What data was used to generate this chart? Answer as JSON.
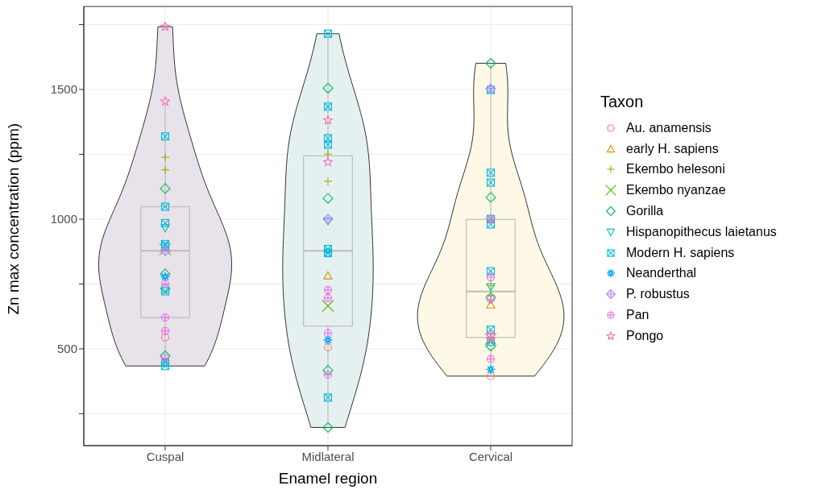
{
  "chart_data": {
    "type": "box",
    "xlabel": "Enamel region",
    "ylabel": "Zn max concentration (ppm)",
    "legend_title": "Taxon",
    "categories": [
      "Cuspal",
      "Midlateral",
      "Cervical"
    ],
    "colors": [
      "#e8e2ea",
      "#e5f1f1",
      "#fdf9e6"
    ],
    "boxes": [
      {
        "low": 434,
        "q1": 621,
        "median": 878,
        "q3": 1048,
        "high": 1454
      },
      {
        "low": 197,
        "q1": 588,
        "median": 878,
        "q3": 1244,
        "high": 1715
      },
      {
        "low": 395,
        "q1": 544,
        "median": 721,
        "q3": 999,
        "high": 1601
      }
    ],
    "ylim": [
      127,
      1820
    ],
    "yticks": [
      {
        "value": 250,
        "label": null
      },
      500,
      {
        "value": 750,
        "label": null
      },
      1000,
      {
        "value": 1250,
        "label": null
      },
      1500,
      {
        "value": 1750,
        "label": null
      }
    ],
    "grid": true,
    "legend": "right",
    "series": [
      {
        "name": "Au. anamensis",
        "type": "scatter",
        "marker": "circle",
        "color": "#f8766d",
        "x": [
          "Cuspal",
          "Midlateral",
          "Cervical"
        ],
        "values": [
          544,
          506,
          395
        ]
      },
      {
        "name": "early H. sapiens",
        "type": "scatter",
        "marker": "triangle",
        "color": "#db8e00",
        "x": [
          "Midlateral",
          "Cervical"
        ],
        "values": [
          782,
          670
        ]
      },
      {
        "name": "Ekembo helesoni",
        "type": "scatter",
        "marker": "cross",
        "color": "#aea200",
        "x": [
          "Cuspal",
          "Cuspal",
          "Midlateral",
          "Midlateral",
          "Cervical",
          "Cervical"
        ],
        "values": [
          1239,
          1190,
          1251,
          1146,
          744,
          706
        ]
      },
      {
        "name": "Ekembo nyanzae",
        "type": "scatter",
        "marker": "cross",
        "color": "#64b200",
        "x": [
          "Cuspal",
          "Midlateral",
          "Cervical"
        ],
        "values": [
          884,
          666,
          538
        ]
      },
      {
        "name": "Gorilla",
        "type": "scatter",
        "marker": "diamond",
        "color": "#00bd5c",
        "x": [
          "Cuspal",
          "Cuspal",
          "Cuspal",
          "Cuspal",
          "Midlateral",
          "Midlateral",
          "Midlateral",
          "Midlateral",
          "Cervical",
          "Cervical",
          "Cervical",
          "Cervical"
        ],
        "values": [
          1118,
          789,
          733,
          473,
          1505,
          1080,
          417,
          197,
          1601,
          1084,
          698,
          511
        ]
      },
      {
        "name": "Hispanopithecus laietanus",
        "type": "scatter",
        "marker": "triangle",
        "color": "#00c1a7",
        "x": [
          "Cuspal",
          "Midlateral",
          "Cervical"
        ],
        "values": [
          966,
          993,
          739
        ]
      },
      {
        "name": "Modern H. sapiens",
        "type": "scatter",
        "marker": "square",
        "color": "#00bade",
        "x": [
          "Cuspal",
          "Cuspal",
          "Cuspal",
          "Cuspal",
          "Cuspal",
          "Cuspal",
          "Cuspal",
          "Cuspal",
          "Midlateral",
          "Midlateral",
          "Midlateral",
          "Midlateral",
          "Midlateral",
          "Midlateral",
          "Midlateral",
          "Midlateral",
          "Cervical",
          "Cervical",
          "Cervical",
          "Cervical",
          "Cervical",
          "Cervical",
          "Cervical",
          "Cervical"
        ],
        "values": [
          1319,
          1048,
          985,
          896,
          904,
          722,
          449,
          434,
          1715,
          1434,
          1312,
          1287,
          885,
          869,
          871,
          312,
          1498,
          1179,
          1141,
          1001,
          980,
          799,
          574,
          527
        ]
      },
      {
        "name": "Neanderthal",
        "type": "scatter",
        "marker": "star",
        "color": "#00a6ff",
        "x": [
          "Cuspal",
          "Midlateral",
          "Cervical"
        ],
        "values": [
          778,
          534,
          421
        ]
      },
      {
        "name": "P. robustus",
        "type": "scatter",
        "marker": "diamond",
        "color": "#b385ff",
        "x": [
          "Cuspal",
          "Midlateral",
          "Cervical"
        ],
        "values": [
          878,
          1000,
          1503
        ]
      },
      {
        "name": "Pan",
        "type": "scatter",
        "marker": "circle",
        "color": "#ef67eb",
        "x": [
          "Cuspal",
          "Cuspal",
          "Cuspal",
          "Cuspal",
          "Midlateral",
          "Midlateral",
          "Midlateral",
          "Midlateral",
          "Cervical",
          "Cervical",
          "Cervical",
          "Cervical"
        ],
        "values": [
          750,
          621,
          569,
          464,
          727,
          696,
          561,
          401,
          776,
          690,
          556,
          461
        ]
      },
      {
        "name": "Pongo",
        "type": "scatter",
        "marker": "star",
        "color": "#ff63b6",
        "x": [
          "Cuspal",
          "Cuspal",
          "Midlateral",
          "Midlateral",
          "Cervical",
          "Cervical"
        ],
        "values": [
          1742,
          1454,
          1381,
          1220,
          999,
          538
        ]
      }
    ]
  }
}
